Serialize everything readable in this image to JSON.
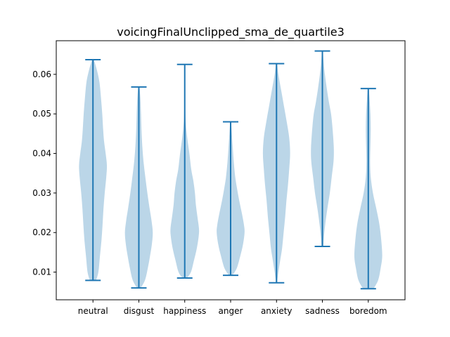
{
  "chart_data": {
    "type": "violin",
    "title": "voicingFinalUnclipped_sma_de_quartile3",
    "xlabel": "",
    "ylabel": "",
    "categories": [
      "neutral",
      "disgust",
      "happiness",
      "anger",
      "anxiety",
      "sadness",
      "boredom"
    ],
    "ylim": [
      0.003,
      0.0685
    ],
    "yticks": [
      0.01,
      0.02,
      0.03,
      0.04,
      0.05,
      0.06
    ],
    "ytick_labels": [
      "0.01",
      "0.02",
      "0.03",
      "0.04",
      "0.05",
      "0.06"
    ],
    "grid": false,
    "body_color": "#1f77b4",
    "line_color": "#1f77b4",
    "series": [
      {
        "min": 0.0079,
        "max": 0.0637,
        "density": [
          [
            0.0079,
            0.2
          ],
          [
            0.01,
            0.35
          ],
          [
            0.014,
            0.45
          ],
          [
            0.018,
            0.55
          ],
          [
            0.022,
            0.62
          ],
          [
            0.026,
            0.68
          ],
          [
            0.03,
            0.76
          ],
          [
            0.034,
            0.86
          ],
          [
            0.037,
            0.9
          ],
          [
            0.04,
            0.82
          ],
          [
            0.043,
            0.72
          ],
          [
            0.046,
            0.66
          ],
          [
            0.05,
            0.6
          ],
          [
            0.054,
            0.52
          ],
          [
            0.058,
            0.42
          ],
          [
            0.061,
            0.26
          ],
          [
            0.0637,
            0.06
          ]
        ]
      },
      {
        "min": 0.006,
        "max": 0.0568,
        "density": [
          [
            0.006,
            0.12
          ],
          [
            0.008,
            0.4
          ],
          [
            0.011,
            0.58
          ],
          [
            0.014,
            0.72
          ],
          [
            0.017,
            0.84
          ],
          [
            0.02,
            0.9
          ],
          [
            0.023,
            0.82
          ],
          [
            0.026,
            0.7
          ],
          [
            0.03,
            0.55
          ],
          [
            0.034,
            0.42
          ],
          [
            0.038,
            0.3
          ],
          [
            0.042,
            0.22
          ],
          [
            0.046,
            0.17
          ],
          [
            0.05,
            0.14
          ],
          [
            0.054,
            0.1
          ],
          [
            0.0568,
            0.04
          ]
        ]
      },
      {
        "min": 0.0085,
        "max": 0.0625,
        "density": [
          [
            0.0085,
            0.14
          ],
          [
            0.01,
            0.4
          ],
          [
            0.013,
            0.6
          ],
          [
            0.016,
            0.78
          ],
          [
            0.019,
            0.9
          ],
          [
            0.021,
            0.92
          ],
          [
            0.024,
            0.82
          ],
          [
            0.027,
            0.72
          ],
          [
            0.03,
            0.66
          ],
          [
            0.033,
            0.56
          ],
          [
            0.036,
            0.42
          ],
          [
            0.04,
            0.3
          ],
          [
            0.044,
            0.16
          ],
          [
            0.048,
            0.06
          ],
          [
            0.052,
            0.03
          ],
          [
            0.056,
            0.02
          ],
          [
            0.0625,
            0.01
          ]
        ]
      },
      {
        "min": 0.0092,
        "max": 0.048,
        "density": [
          [
            0.0092,
            0.12
          ],
          [
            0.011,
            0.4
          ],
          [
            0.014,
            0.62
          ],
          [
            0.017,
            0.8
          ],
          [
            0.02,
            0.9
          ],
          [
            0.022,
            0.86
          ],
          [
            0.025,
            0.72
          ],
          [
            0.028,
            0.56
          ],
          [
            0.031,
            0.42
          ],
          [
            0.034,
            0.3
          ],
          [
            0.038,
            0.2
          ],
          [
            0.042,
            0.13
          ],
          [
            0.045,
            0.08
          ],
          [
            0.048,
            0.03
          ]
        ]
      },
      {
        "min": 0.0073,
        "max": 0.0627,
        "density": [
          [
            0.0073,
            0.03
          ],
          [
            0.01,
            0.12
          ],
          [
            0.013,
            0.24
          ],
          [
            0.016,
            0.36
          ],
          [
            0.02,
            0.46
          ],
          [
            0.024,
            0.56
          ],
          [
            0.028,
            0.64
          ],
          [
            0.032,
            0.74
          ],
          [
            0.036,
            0.82
          ],
          [
            0.04,
            0.88
          ],
          [
            0.044,
            0.82
          ],
          [
            0.048,
            0.66
          ],
          [
            0.052,
            0.48
          ],
          [
            0.056,
            0.3
          ],
          [
            0.06,
            0.12
          ],
          [
            0.0627,
            0.04
          ]
        ]
      },
      {
        "min": 0.0165,
        "max": 0.0659,
        "density": [
          [
            0.0165,
            0.06
          ],
          [
            0.019,
            0.1
          ],
          [
            0.022,
            0.18
          ],
          [
            0.026,
            0.32
          ],
          [
            0.03,
            0.48
          ],
          [
            0.034,
            0.6
          ],
          [
            0.038,
            0.72
          ],
          [
            0.041,
            0.74
          ],
          [
            0.044,
            0.7
          ],
          [
            0.047,
            0.64
          ],
          [
            0.05,
            0.56
          ],
          [
            0.053,
            0.42
          ],
          [
            0.056,
            0.3
          ],
          [
            0.06,
            0.16
          ],
          [
            0.063,
            0.08
          ],
          [
            0.0659,
            0.03
          ]
        ]
      },
      {
        "min": 0.0058,
        "max": 0.0564,
        "density": [
          [
            0.0058,
            0.34
          ],
          [
            0.008,
            0.64
          ],
          [
            0.011,
            0.8
          ],
          [
            0.014,
            0.9
          ],
          [
            0.018,
            0.84
          ],
          [
            0.022,
            0.72
          ],
          [
            0.026,
            0.52
          ],
          [
            0.03,
            0.3
          ],
          [
            0.034,
            0.16
          ],
          [
            0.038,
            0.12
          ],
          [
            0.042,
            0.14
          ],
          [
            0.046,
            0.16
          ],
          [
            0.05,
            0.14
          ],
          [
            0.054,
            0.08
          ],
          [
            0.0564,
            0.03
          ]
        ]
      }
    ]
  }
}
